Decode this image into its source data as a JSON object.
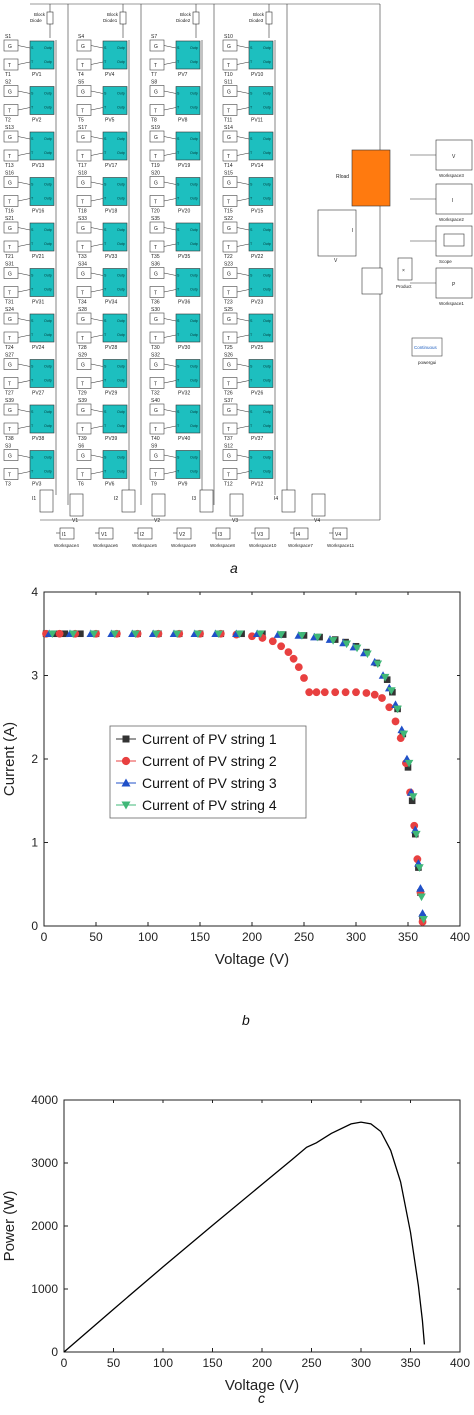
{
  "panel_a": {
    "label": "a",
    "pv_columns": [
      {
        "diode": "Block\nDiode",
        "rows": [
          [
            "S1",
            "T1",
            "PV1"
          ],
          [
            "S2",
            "T2",
            "PV2"
          ],
          [
            "S13",
            "T13",
            "PV13"
          ],
          [
            "S16",
            "T16",
            "PV16"
          ],
          [
            "S21",
            "T21",
            "PV21"
          ],
          [
            "S31",
            "T31",
            "PV31"
          ],
          [
            "S24",
            "T24",
            "PV24"
          ],
          [
            "S27",
            "T27",
            "PV27"
          ],
          [
            "S39",
            "T38",
            "PV38"
          ],
          [
            "S3",
            "T3",
            "PV3"
          ]
        ]
      },
      {
        "diode": "Block\nDiode1",
        "rows": [
          [
            "S4",
            "T4",
            "PV4"
          ],
          [
            "S5",
            "T5",
            "PV5"
          ],
          [
            "S17",
            "T17",
            "PV17"
          ],
          [
            "S18",
            "T18",
            "PV18"
          ],
          [
            "S33",
            "T33",
            "PV33"
          ],
          [
            "S34",
            "T34",
            "PV34"
          ],
          [
            "S28",
            "T28",
            "PV28"
          ],
          [
            "S29",
            "T29",
            "PV29"
          ],
          [
            "S39",
            "T39",
            "PV39"
          ],
          [
            "S6",
            "T6",
            "PV6"
          ]
        ]
      },
      {
        "diode": "Block\nDiode2",
        "rows": [
          [
            "S7",
            "T7",
            "PV7"
          ],
          [
            "S8",
            "T8",
            "PV8"
          ],
          [
            "S19",
            "T19",
            "PV19"
          ],
          [
            "S20",
            "T20",
            "PV20"
          ],
          [
            "S35",
            "T35",
            "PV35"
          ],
          [
            "S36",
            "T36",
            "PV36"
          ],
          [
            "S30",
            "T30",
            "PV30"
          ],
          [
            "S32",
            "T32",
            "PV32"
          ],
          [
            "S40",
            "T40",
            "PV40"
          ],
          [
            "S9",
            "T9",
            "PV9"
          ]
        ]
      },
      {
        "diode": "Block\nDiode3",
        "rows": [
          [
            "S10",
            "T10",
            "PV10"
          ],
          [
            "S11",
            "T11",
            "PV11"
          ],
          [
            "S14",
            "T14",
            "PV14"
          ],
          [
            "S15",
            "T15",
            "PV15"
          ],
          [
            "S22",
            "T22",
            "PV22"
          ],
          [
            "S23",
            "T23",
            "PV23"
          ],
          [
            "S25",
            "T25",
            "PV25"
          ],
          [
            "S26",
            "T26",
            "PV26"
          ],
          [
            "S37",
            "T37",
            "PV37"
          ],
          [
            "S12",
            "T12",
            "PV12"
          ]
        ]
      }
    ],
    "sensors": [
      "I1",
      "V1",
      "I2",
      "V2",
      "I3",
      "V3",
      "I4",
      "V4"
    ],
    "workspaces_bottom": [
      {
        "label": "I1",
        "ws": "Workspace4"
      },
      {
        "label": "V1",
        "ws": "Workspace6"
      },
      {
        "label": "I2",
        "ws": "Workspace5"
      },
      {
        "label": "V2",
        "ws": "Workspace9"
      },
      {
        "label": "I3",
        "ws": "Workspace8"
      },
      {
        "label": "V3",
        "ws": "Workspace10"
      },
      {
        "label": "I4",
        "ws": "Workspace7"
      },
      {
        "label": "V4",
        "ws": "Workspace11"
      }
    ],
    "rload": "Rload",
    "meas_v": "V",
    "meas_i": "I",
    "product": "Product",
    "right_blocks": [
      {
        "label": "V",
        "ws": "Workspace3"
      },
      {
        "label": "I",
        "ws": "Workspace2"
      },
      {
        "label": "",
        "ws": "Scope"
      },
      {
        "label": "P",
        "ws": "Workspace1"
      }
    ],
    "powergui": "Continuous",
    "powergui_label": "powergui",
    "port_g": "G",
    "port_t": "T",
    "out_labels": [
      "S",
      "Outp"
    ],
    "colors": {
      "pv": "#1dbfbf",
      "rload": "#ff7a0f",
      "powergui": "#2060c0"
    }
  },
  "chart_data": [
    {
      "type": "scatter",
      "label": "b",
      "xlabel": "Voltage (V)",
      "ylabel": "Current (A)",
      "xlim": [
        0,
        400
      ],
      "ylim": [
        0,
        4
      ],
      "xticks": [
        0,
        50,
        100,
        150,
        200,
        250,
        300,
        350,
        400
      ],
      "yticks": [
        0,
        1,
        2,
        3,
        4
      ],
      "legend_position": "center-left",
      "series": [
        {
          "name": "Current of PV string 1",
          "marker": "square",
          "color": "#333333",
          "points": [
            [
              2,
              3.5
            ],
            [
              10,
              3.5
            ],
            [
              20,
              3.5
            ],
            [
              35,
              3.5
            ],
            [
              50,
              3.5
            ],
            [
              70,
              3.5
            ],
            [
              90,
              3.5
            ],
            [
              110,
              3.5
            ],
            [
              130,
              3.5
            ],
            [
              150,
              3.5
            ],
            [
              170,
              3.5
            ],
            [
              190,
              3.5
            ],
            [
              210,
              3.5
            ],
            [
              230,
              3.49
            ],
            [
              250,
              3.48
            ],
            [
              265,
              3.46
            ],
            [
              280,
              3.43
            ],
            [
              290,
              3.4
            ],
            [
              300,
              3.35
            ],
            [
              310,
              3.28
            ],
            [
              320,
              3.15
            ],
            [
              330,
              2.95
            ],
            [
              335,
              2.8
            ],
            [
              340,
              2.6
            ],
            [
              345,
              2.3
            ],
            [
              350,
              1.9
            ],
            [
              354,
              1.5
            ],
            [
              357,
              1.1
            ],
            [
              360,
              0.7
            ],
            [
              362,
              0.4
            ],
            [
              364,
              0.1
            ]
          ]
        },
        {
          "name": "Current of PV string 2",
          "marker": "circle",
          "color": "#e84040",
          "points": [
            [
              2,
              3.5
            ],
            [
              15,
              3.5
            ],
            [
              30,
              3.5
            ],
            [
              50,
              3.5
            ],
            [
              70,
              3.5
            ],
            [
              90,
              3.5
            ],
            [
              110,
              3.5
            ],
            [
              130,
              3.5
            ],
            [
              150,
              3.5
            ],
            [
              170,
              3.5
            ],
            [
              185,
              3.49
            ],
            [
              200,
              3.47
            ],
            [
              210,
              3.45
            ],
            [
              220,
              3.41
            ],
            [
              228,
              3.35
            ],
            [
              235,
              3.28
            ],
            [
              240,
              3.2
            ],
            [
              245,
              3.1
            ],
            [
              250,
              2.97
            ],
            [
              255,
              2.8
            ],
            [
              262,
              2.8
            ],
            [
              270,
              2.8
            ],
            [
              280,
              2.8
            ],
            [
              290,
              2.8
            ],
            [
              300,
              2.8
            ],
            [
              310,
              2.79
            ],
            [
              318,
              2.77
            ],
            [
              325,
              2.73
            ],
            [
              332,
              2.62
            ],
            [
              338,
              2.45
            ],
            [
              343,
              2.25
            ],
            [
              348,
              1.95
            ],
            [
              352,
              1.6
            ],
            [
              356,
              1.2
            ],
            [
              359,
              0.8
            ],
            [
              362,
              0.4
            ],
            [
              364,
              0.05
            ]
          ]
        },
        {
          "name": "Current of PV string 3",
          "marker": "triangle",
          "color": "#2050c8",
          "points": [
            [
              5,
              3.5
            ],
            [
              25,
              3.5
            ],
            [
              45,
              3.5
            ],
            [
              65,
              3.5
            ],
            [
              85,
              3.5
            ],
            [
              105,
              3.5
            ],
            [
              125,
              3.5
            ],
            [
              145,
              3.5
            ],
            [
              165,
              3.5
            ],
            [
              185,
              3.5
            ],
            [
              205,
              3.5
            ],
            [
              225,
              3.49
            ],
            [
              245,
              3.48
            ],
            [
              260,
              3.46
            ],
            [
              275,
              3.43
            ],
            [
              288,
              3.39
            ],
            [
              298,
              3.34
            ],
            [
              308,
              3.27
            ],
            [
              318,
              3.16
            ],
            [
              326,
              3.0
            ],
            [
              332,
              2.85
            ],
            [
              338,
              2.65
            ],
            [
              344,
              2.35
            ],
            [
              349,
              2.0
            ],
            [
              353,
              1.6
            ],
            [
              357,
              1.15
            ],
            [
              360,
              0.75
            ],
            [
              362,
              0.45
            ],
            [
              364,
              0.15
            ]
          ]
        },
        {
          "name": "Current of PV string 4",
          "marker": "triangle-down",
          "color": "#40b878",
          "points": [
            [
              8,
              3.5
            ],
            [
              28,
              3.5
            ],
            [
              48,
              3.5
            ],
            [
              68,
              3.5
            ],
            [
              88,
              3.5
            ],
            [
              108,
              3.5
            ],
            [
              128,
              3.5
            ],
            [
              148,
              3.5
            ],
            [
              168,
              3.5
            ],
            [
              188,
              3.5
            ],
            [
              208,
              3.5
            ],
            [
              228,
              3.49
            ],
            [
              248,
              3.48
            ],
            [
              263,
              3.46
            ],
            [
              278,
              3.42
            ],
            [
              291,
              3.38
            ],
            [
              301,
              3.33
            ],
            [
              311,
              3.26
            ],
            [
              321,
              3.14
            ],
            [
              328,
              2.98
            ],
            [
              334,
              2.82
            ],
            [
              340,
              2.6
            ],
            [
              346,
              2.3
            ],
            [
              351,
              1.95
            ],
            [
              355,
              1.55
            ],
            [
              358,
              1.1
            ],
            [
              361,
              0.7
            ],
            [
              363,
              0.35
            ],
            [
              365,
              0.08
            ]
          ]
        }
      ]
    },
    {
      "type": "line",
      "label": "c",
      "xlabel": "Voltage (V)",
      "ylabel": "Power (W)",
      "xlim": [
        0,
        400
      ],
      "ylim": [
        0,
        4000
      ],
      "xticks": [
        0,
        50,
        100,
        150,
        200,
        250,
        300,
        350,
        400
      ],
      "yticks": [
        0,
        1000,
        2000,
        3000,
        4000
      ],
      "series": [
        {
          "color": "#000000",
          "points": [
            [
              0,
              0
            ],
            [
              50,
              680
            ],
            [
              100,
              1350
            ],
            [
              150,
              2010
            ],
            [
              200,
              2660
            ],
            [
              230,
              3050
            ],
            [
              245,
              3250
            ],
            [
              255,
              3320
            ],
            [
              270,
              3470
            ],
            [
              290,
              3620
            ],
            [
              300,
              3650
            ],
            [
              310,
              3620
            ],
            [
              320,
              3500
            ],
            [
              330,
              3200
            ],
            [
              340,
              2700
            ],
            [
              350,
              1900
            ],
            [
              358,
              1050
            ],
            [
              362,
              500
            ],
            [
              364,
              120
            ]
          ]
        }
      ]
    }
  ]
}
